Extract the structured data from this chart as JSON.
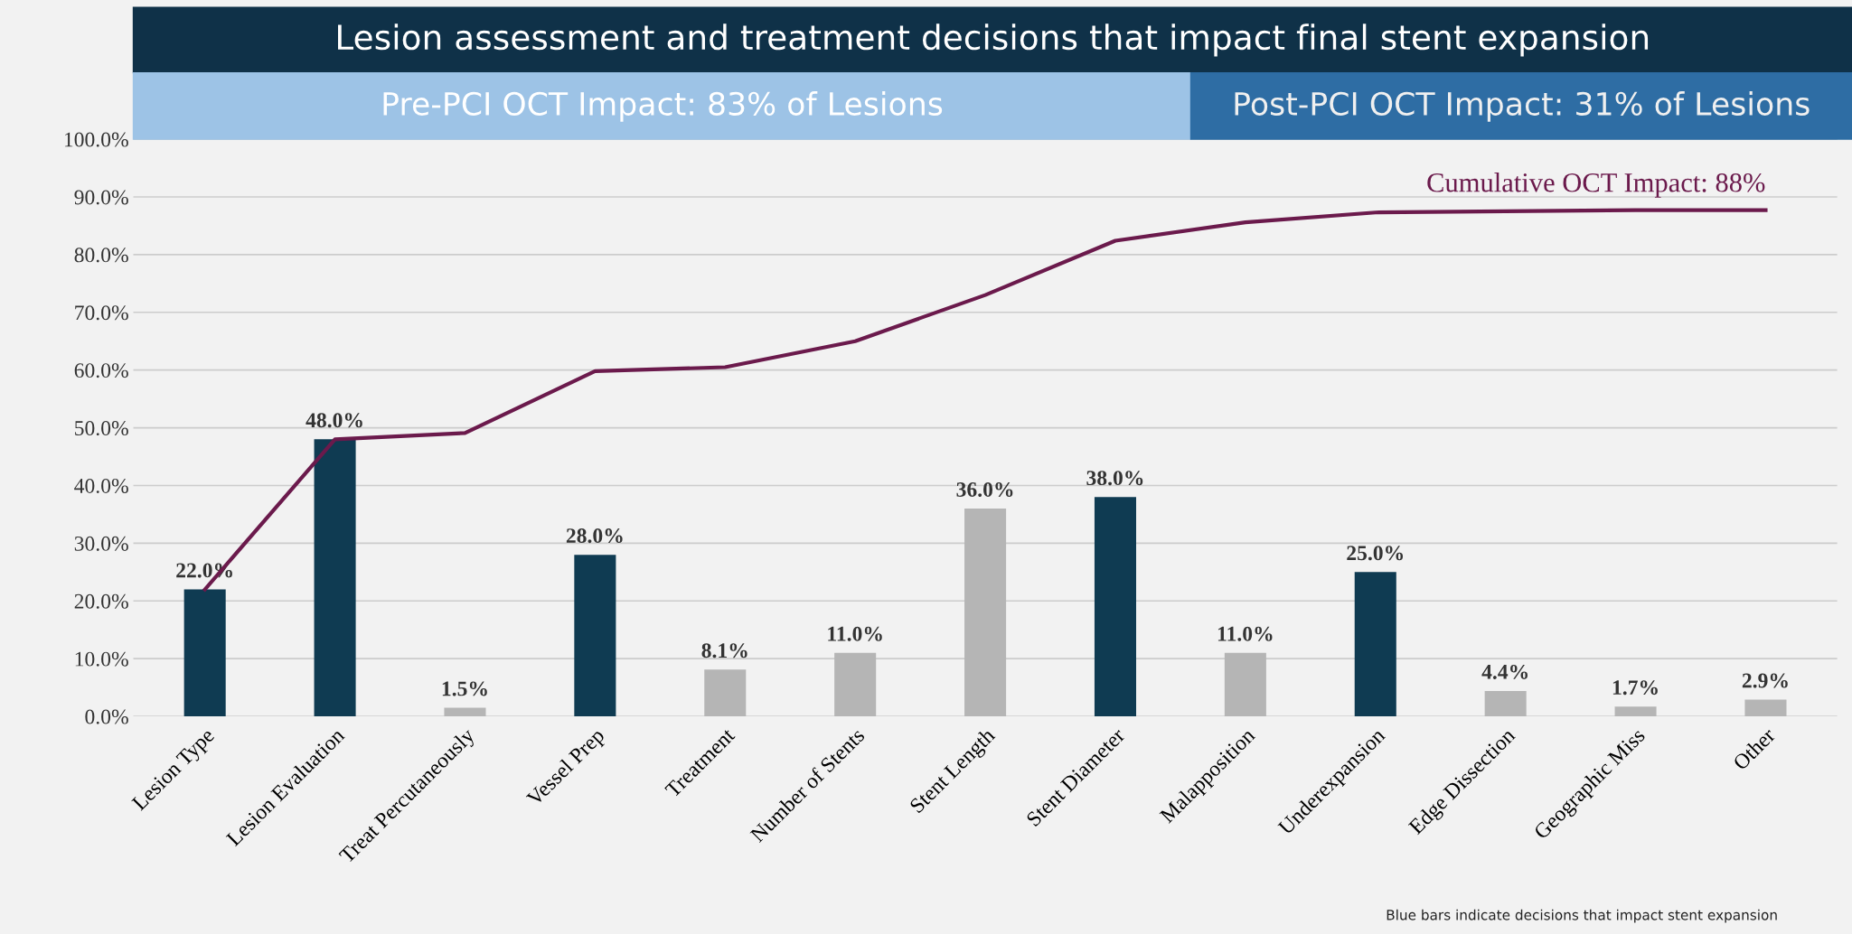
{
  "chart_data": {
    "type": "bar",
    "title": "Lesion assessment and treatment decisions that impact final stent expansion",
    "annotations": [
      "Pre-PCI OCT Impact: 83% of Lesions",
      "Post-PCI OCT Impact: 31% of Lesions",
      "Blue bars indicate decisions that impact stent expansion"
    ],
    "categories": [
      "Lesion Type",
      "Lesion Evaluation",
      "Treat Percutaneously",
      "Vessel Prep",
      "Treatment",
      "Number of Stents",
      "Stent Length",
      "Stent Diameter",
      "Malapposition",
      "Underexpansion",
      "Edge Dissection",
      "Geographic Miss",
      "Other"
    ],
    "series": [
      {
        "colors": [
          "#0f3b52",
          "#0f3b52",
          "#b5b5b5",
          "#0f3b52",
          "#b5b5b5",
          "#b5b5b5",
          "#b5b5b5",
          "#0f3b52",
          "#b5b5b5",
          "#0f3b52",
          "#b5b5b5",
          "#b5b5b5",
          "#b5b5b5"
        ],
        "values": [
          22.0,
          48.0,
          1.5,
          28.0,
          8.1,
          11.0,
          36.0,
          38.0,
          11.0,
          25.0,
          4.4,
          1.7,
          2.9
        ],
        "value_labels": [
          "22.0%",
          "48.0%",
          "1.5%",
          "28.0%",
          "8.1%",
          "11.0%",
          "36.0%",
          "38.0%",
          "11.0%",
          "25.0%",
          "4.4%",
          "1.7%",
          "2.9%"
        ]
      },
      {
        "type": "line",
        "name": "Cumulative OCT Impact: 88%",
        "color": "#6b1a4c",
        "values": [
          22.0,
          48.0,
          49.1,
          59.8,
          60.5,
          65.0,
          73.0,
          82.4,
          85.6,
          87.3,
          87.5,
          87.7,
          87.7
        ]
      }
    ],
    "ylim": [
      0,
      100
    ],
    "yticks": [
      {
        "value": 0,
        "label": "0.0%"
      },
      {
        "value": 10,
        "label": "10.0%"
      },
      {
        "value": 20,
        "label": "20.0%"
      },
      {
        "value": 30,
        "label": "30.0%"
      },
      {
        "value": 40,
        "label": "40.0%"
      },
      {
        "value": 50,
        "label": "50.0%"
      },
      {
        "value": 60,
        "label": "60.0%"
      },
      {
        "value": 70,
        "label": "70.0%"
      },
      {
        "value": 80,
        "label": "80.0%"
      },
      {
        "value": 90,
        "label": "90.0%"
      },
      {
        "value": 100,
        "label": "100.0%"
      }
    ],
    "grid": "y",
    "legend": false,
    "marker": "none",
    "line_style": "solid"
  }
}
